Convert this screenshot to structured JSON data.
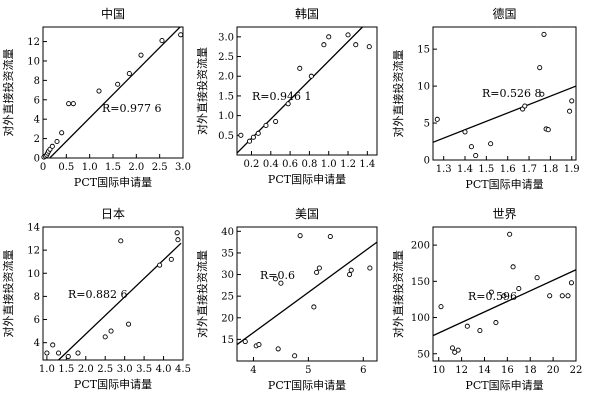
{
  "chart_data": [
    {
      "type": "scatter",
      "title": "中国",
      "xlabel": "PCT国际申请量",
      "ylabel": "对外直接投资流量",
      "xlim": [
        0,
        3.0
      ],
      "ylim": [
        0,
        13.5
      ],
      "xticks": [
        "0",
        "0.5",
        "1.0",
        "1.5",
        "2.0",
        "2.5",
        "3.0"
      ],
      "yticks": [
        "0",
        "2",
        "4",
        "6",
        "8",
        "10",
        "12"
      ],
      "annotation": "R=0.977 6",
      "grid": false,
      "series": [
        {
          "x": [
            0.02,
            0.05,
            0.08,
            0.1,
            0.12,
            0.15,
            0.2,
            0.3,
            0.4,
            0.55,
            0.65,
            1.2,
            1.6,
            1.85,
            2.1,
            2.55,
            2.95
          ],
          "y": [
            0.1,
            0.2,
            0.3,
            0.5,
            0.7,
            0.9,
            1.2,
            1.7,
            2.6,
            5.6,
            5.6,
            6.9,
            7.6,
            8.7,
            10.6,
            12.1,
            12.7
          ]
        }
      ],
      "trend": {
        "x": [
          0,
          3.0
        ],
        "y": [
          -0.7,
          13.8
        ]
      }
    },
    {
      "type": "scatter",
      "title": "韩国",
      "xlabel": "PCT国际申请量",
      "ylabel": "对外直接投资流量",
      "xlim": [
        0.05,
        1.5
      ],
      "ylim": [
        0,
        3.25
      ],
      "xticks": [
        "0.2",
        "0.4",
        "0.6",
        "0.8",
        "1.0",
        "1.2",
        "1.4"
      ],
      "yticks": [
        "0.5",
        "1.0",
        "1.5",
        "2.0",
        "2.5",
        "3.0"
      ],
      "annotation": "R=0.946 1",
      "grid": false,
      "series": [
        {
          "x": [
            0.09,
            0.18,
            0.22,
            0.27,
            0.35,
            0.45,
            0.58,
            0.7,
            0.82,
            0.95,
            1.0,
            1.2,
            1.28,
            1.42
          ],
          "y": [
            0.5,
            0.35,
            0.45,
            0.55,
            0.75,
            0.85,
            1.3,
            2.2,
            2.0,
            2.8,
            3.0,
            3.05,
            2.8,
            2.75
          ]
        }
      ],
      "trend": {
        "x": [
          0.05,
          1.35
        ],
        "y": [
          0.05,
          3.25
        ]
      }
    },
    {
      "type": "scatter",
      "title": "德国",
      "xlabel": "PCT国际申请量",
      "ylabel": "对外直接投资流量",
      "xlim": [
        1.25,
        1.92
      ],
      "ylim": [
        0,
        18
      ],
      "xticks": [
        "1.3",
        "1.4",
        "1.5",
        "1.6",
        "1.7",
        "1.8",
        "1.9"
      ],
      "yticks": [
        "0",
        "5",
        "10",
        "15"
      ],
      "annotation": "R=0.526 8",
      "grid": false,
      "series": [
        {
          "x": [
            1.27,
            1.4,
            1.43,
            1.45,
            1.52,
            1.67,
            1.68,
            1.75,
            1.76,
            1.77,
            1.78,
            1.79,
            1.89,
            1.9
          ],
          "y": [
            5.5,
            3.8,
            1.8,
            0.6,
            2.2,
            6.9,
            7.3,
            12.5,
            8.9,
            17.0,
            4.2,
            4.1,
            6.6,
            8.0
          ]
        }
      ],
      "trend": {
        "x": [
          1.25,
          1.92
        ],
        "y": [
          2.4,
          10.0
        ]
      }
    },
    {
      "type": "scatter",
      "title": "日本",
      "xlabel": "PCT国际申请量",
      "ylabel": "对外直接投资流量",
      "xlim": [
        0.9,
        4.5
      ],
      "ylim": [
        2.5,
        14
      ],
      "xticks": [
        "1.0",
        "1.5",
        "2.0",
        "2.5",
        "3.0",
        "3.5",
        "4.0",
        "4.5"
      ],
      "yticks": [
        "4",
        "6",
        "8",
        "10",
        "12",
        "14"
      ],
      "annotation": "R=0.882 6",
      "grid": false,
      "series": [
        {
          "x": [
            1.0,
            1.15,
            1.3,
            1.55,
            1.8,
            2.5,
            2.65,
            2.9,
            3.1,
            3.9,
            4.2,
            4.35,
            4.37
          ],
          "y": [
            3.1,
            3.8,
            3.1,
            2.8,
            3.1,
            4.5,
            5.0,
            12.8,
            5.6,
            10.7,
            11.2,
            13.5,
            12.9
          ]
        }
      ],
      "trend": {
        "x": [
          1.3,
          4.45
        ],
        "y": [
          2.5,
          12.6
        ]
      }
    },
    {
      "type": "scatter",
      "title": "美国",
      "xlabel": "PCT国际申请量",
      "ylabel": "对外直接投资流量",
      "xlim": [
        3.7,
        6.25
      ],
      "ylim": [
        10,
        41
      ],
      "xticks": [
        "4",
        "5",
        "6"
      ],
      "yticks": [
        "15",
        "20",
        "25",
        "30",
        "35",
        "40"
      ],
      "annotation": "R=0.6",
      "grid": false,
      "series": [
        {
          "x": [
            3.85,
            4.05,
            4.1,
            4.4,
            4.45,
            4.5,
            4.75,
            4.85,
            5.1,
            5.15,
            5.2,
            5.4,
            5.75,
            5.78,
            6.12
          ],
          "y": [
            14.5,
            13.5,
            13.8,
            29.0,
            12.8,
            28.0,
            11.2,
            39.0,
            22.5,
            30.5,
            31.5,
            38.8,
            30.0,
            31.0,
            31.5
          ]
        }
      ],
      "trend": {
        "x": [
          3.7,
          6.25
        ],
        "y": [
          13.8,
          37.5
        ]
      }
    },
    {
      "type": "scatter",
      "title": "世界",
      "xlabel": "PCT国际申请量",
      "ylabel": "对外直接投资流量",
      "xlim": [
        9.5,
        22
      ],
      "ylim": [
        40,
        225
      ],
      "xticks": [
        "10",
        "12",
        "14",
        "16",
        "18",
        "20",
        "22"
      ],
      "yticks": [
        "50",
        "100",
        "150",
        "200"
      ],
      "annotation": "R=0.596",
      "grid": false,
      "series": [
        {
          "x": [
            10.2,
            11.2,
            11.4,
            11.7,
            12.5,
            13.6,
            14.6,
            15.0,
            15.7,
            16.2,
            16.5,
            17.0,
            18.6,
            19.7,
            20.8,
            21.3,
            21.6
          ],
          "y": [
            115,
            58,
            52,
            55,
            88,
            82,
            135,
            93,
            130,
            215,
            170,
            140,
            155,
            130,
            130,
            130,
            148
          ]
        }
      ],
      "trend": {
        "x": [
          9.5,
          22
        ],
        "y": [
          75,
          166
        ]
      }
    }
  ]
}
